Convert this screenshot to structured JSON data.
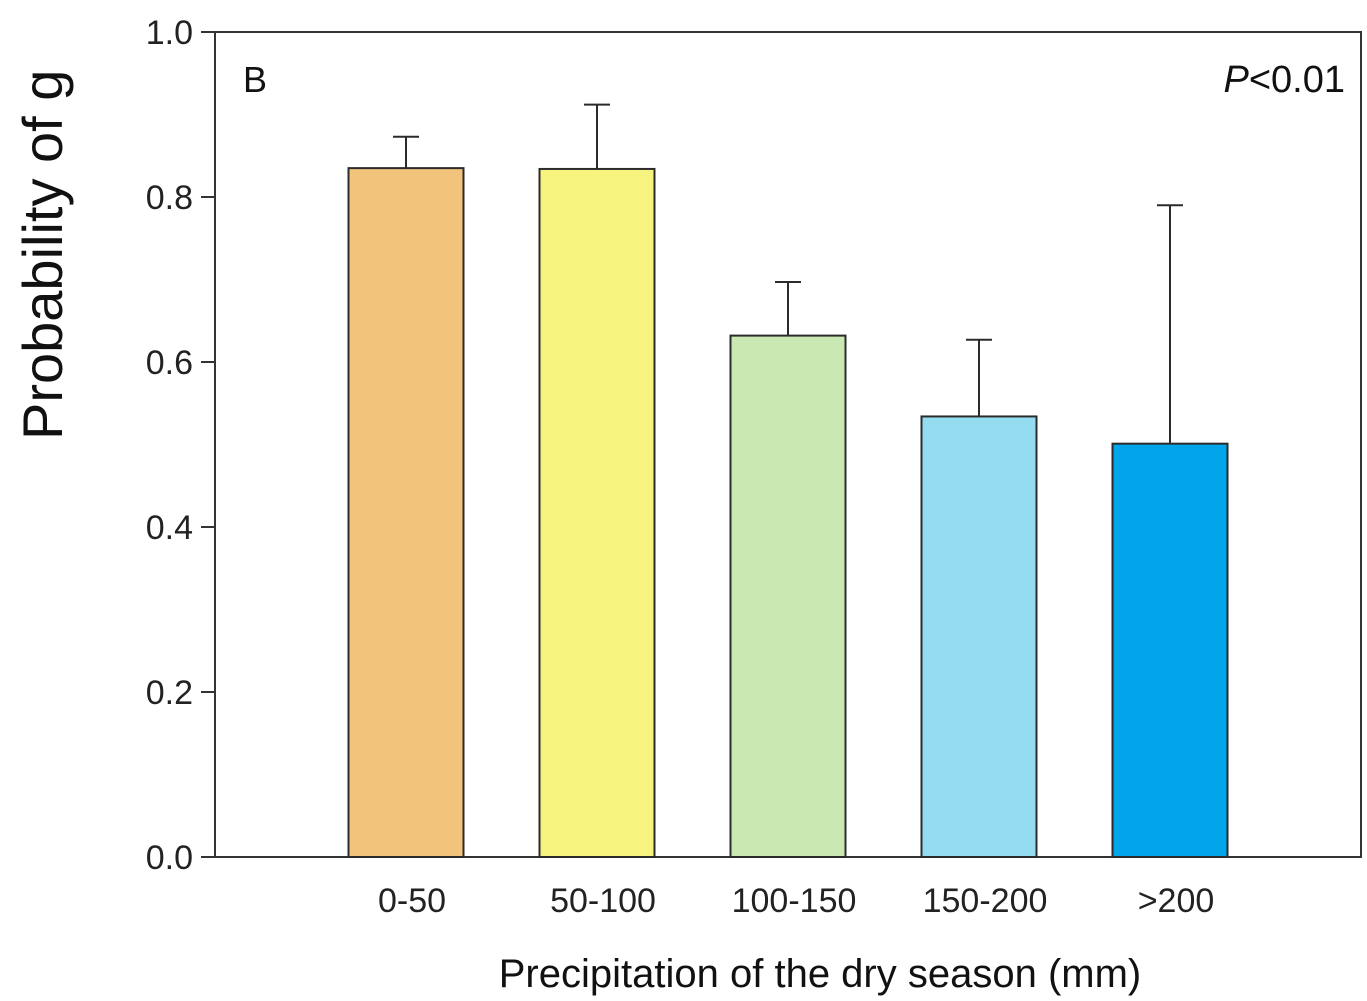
{
  "chart_data": {
    "type": "bar",
    "panel_label": "B",
    "annotation": {
      "italic": "P",
      "rest": "<0.01",
      "placement": "top-right"
    },
    "xlabel": "Precipitation of the dry season (mm)",
    "ylabel": "Probability of g",
    "categories": [
      "0-50",
      "50-100",
      "100-150",
      "150-200",
      ">200"
    ],
    "values": [
      0.835,
      0.834,
      0.632,
      0.534,
      0.501
    ],
    "error_upper": [
      0.873,
      0.912,
      0.697,
      0.627,
      0.79
    ],
    "colors": [
      "#F2C37A",
      "#F6F47F",
      "#C9E8B2",
      "#94DCF0",
      "#00A6E9"
    ],
    "ylim": [
      0,
      1.0
    ],
    "yticks": [
      "0.0",
      "0.2",
      "0.4",
      "0.6",
      "0.8",
      "1.0"
    ],
    "grid": false
  }
}
